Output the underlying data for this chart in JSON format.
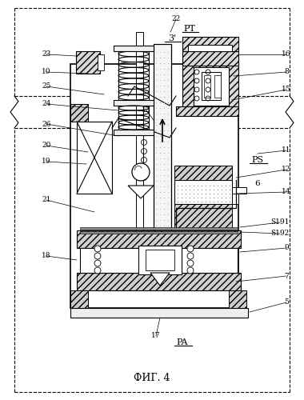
{
  "title": "ФИГ. 4",
  "background": "#ffffff",
  "PT_label": "PT",
  "3p_label": "3'",
  "PS_label": "PS",
  "PA_label": "PA",
  "fig_label": "ФИГ. 4"
}
